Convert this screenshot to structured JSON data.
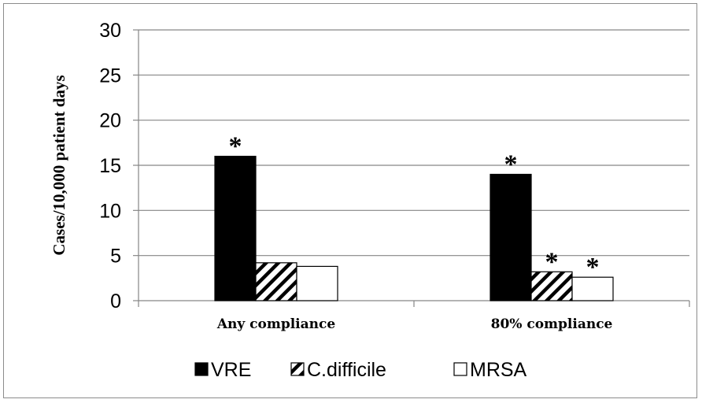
{
  "chart_data": {
    "type": "bar",
    "categories": [
      "Any compliance",
      "80% compliance"
    ],
    "series": [
      {
        "name": "VRE",
        "values": [
          16,
          14
        ],
        "annotations": [
          "*",
          "*"
        ],
        "fill": "solid"
      },
      {
        "name": "C.difficile",
        "values": [
          4.2,
          3.2
        ],
        "annotations": [
          "",
          "*"
        ],
        "fill": "hatch"
      },
      {
        "name": "MRSA",
        "values": [
          3.8,
          2.6
        ],
        "annotations": [
          "",
          "*"
        ],
        "fill": "white"
      }
    ],
    "title": "",
    "xlabel": "",
    "ylabel": "Cases/10,000 patient days",
    "ylim": [
      0,
      30
    ],
    "yticks": [
      0,
      5,
      10,
      15,
      20,
      25,
      30
    ],
    "grid": true,
    "legend_position": "bottom"
  },
  "colors": {
    "bar": "#000000",
    "grid": "#868686",
    "axis": "#868686",
    "frame": "#8c8c8c"
  }
}
